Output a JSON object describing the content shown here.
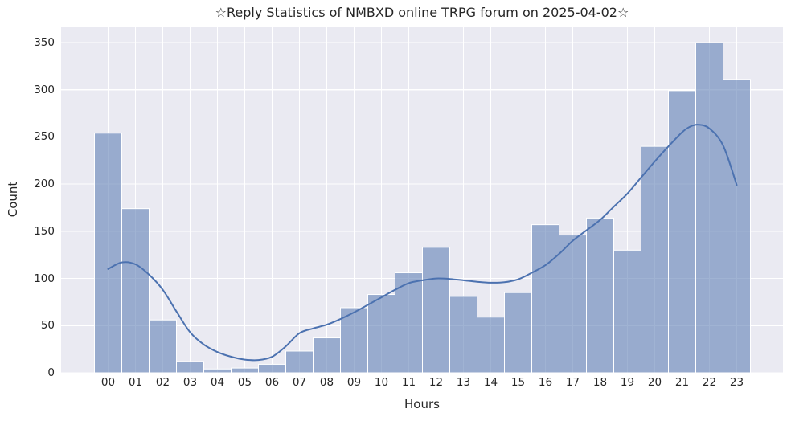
{
  "chart_data": {
    "type": "bar",
    "title": "☆Reply Statistics of NMBXD online TRPG forum on 2025-04-02☆",
    "xlabel": "Hours",
    "ylabel": "Count",
    "categories": [
      "00",
      "01",
      "02",
      "03",
      "04",
      "05",
      "06",
      "07",
      "08",
      "09",
      "10",
      "11",
      "12",
      "13",
      "14",
      "15",
      "16",
      "17",
      "18",
      "19",
      "20",
      "21",
      "22",
      "23"
    ],
    "values": [
      254,
      174,
      56,
      12,
      4,
      5,
      9,
      23,
      37,
      69,
      83,
      106,
      133,
      81,
      59,
      85,
      157,
      146,
      164,
      130,
      240,
      299,
      350,
      311
    ],
    "yticks": [
      0,
      50,
      100,
      150,
      200,
      250,
      300,
      350
    ],
    "ylim": [
      0,
      350
    ],
    "grid": true,
    "legend": "none",
    "kde_overlay": {
      "x": [
        0,
        0.5,
        1,
        1.5,
        2,
        2.5,
        3,
        3.5,
        4,
        4.5,
        5,
        5.5,
        6,
        6.5,
        7,
        7.5,
        8,
        8.5,
        9,
        9.5,
        10,
        10.5,
        11,
        11.5,
        12,
        12.5,
        13,
        13.5,
        14,
        14.5,
        15,
        15.5,
        16,
        16.5,
        17,
        17.5,
        18,
        18.5,
        19,
        19.5,
        20,
        20.5,
        21,
        21.3,
        21.6,
        22,
        22.5,
        23
      ],
      "y": [
        110,
        117,
        115,
        104,
        88,
        65,
        43,
        30,
        22,
        17,
        14,
        13.5,
        17,
        28,
        42,
        47,
        51,
        57,
        64,
        72,
        80,
        88,
        95,
        98,
        100,
        99.5,
        98,
        96.5,
        95.5,
        96,
        99,
        106,
        114,
        126,
        140,
        151,
        162,
        176,
        190,
        207,
        224,
        240,
        255,
        261,
        263,
        259,
        241,
        199
      ]
    },
    "colors": {
      "plot_bg": "#eaeaf2",
      "grid_line": "#ffffff",
      "bar_fill": "rgba(97,129,182,0.6)",
      "bar_edge": "#ffffff",
      "kde_line": "#4c72b0",
      "text": "#262626"
    }
  }
}
